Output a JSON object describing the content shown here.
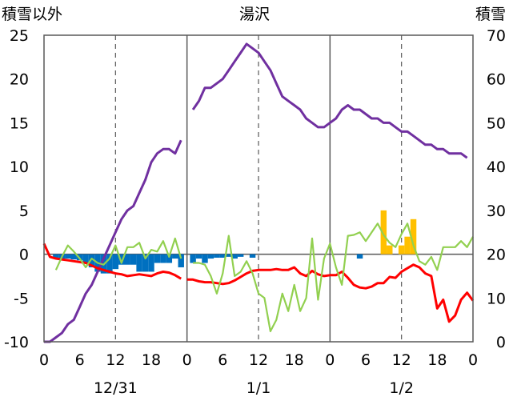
{
  "chart_data": {
    "type": "line",
    "title": "湯沢",
    "ylabel_left": "積雪以外",
    "ylabel_right": "積雪",
    "left_axis": {
      "min": -10,
      "max": 25,
      "ticks": [
        -10,
        -5,
        0,
        5,
        10,
        15,
        20,
        25
      ]
    },
    "right_axis": {
      "min": 0,
      "max": 70,
      "ticks": [
        0,
        10,
        20,
        30,
        40,
        50,
        60,
        70
      ]
    },
    "x_hours": {
      "min": 0,
      "max": 72
    },
    "x_ticks": [
      {
        "h": 0,
        "label": "0"
      },
      {
        "h": 6,
        "label": "6"
      },
      {
        "h": 12,
        "label": "12"
      },
      {
        "h": 18,
        "label": "18"
      },
      {
        "h": 24,
        "label": "0"
      },
      {
        "h": 30,
        "label": "6"
      },
      {
        "h": 36,
        "label": "12"
      },
      {
        "h": 42,
        "label": "18"
      },
      {
        "h": 48,
        "label": "0"
      },
      {
        "h": 54,
        "label": "6"
      },
      {
        "h": 60,
        "label": "12"
      },
      {
        "h": 66,
        "label": "18"
      },
      {
        "h": 72,
        "label": "0"
      }
    ],
    "date_labels": [
      {
        "h": 12,
        "label": "12/31"
      },
      {
        "h": 36,
        "label": "1/1"
      },
      {
        "h": 60,
        "label": "1/2"
      }
    ],
    "grid": {
      "solid_x": [
        24,
        48
      ],
      "dashed_x": [
        12,
        36,
        60
      ],
      "zero_line": 0
    },
    "series": [
      {
        "axis": "right",
        "color": "#7030a0",
        "segments": [
          [
            [
              0,
              0
            ],
            [
              1,
              0
            ],
            [
              2,
              1
            ],
            [
              3,
              2
            ],
            [
              4,
              4
            ],
            [
              5,
              5
            ],
            [
              6,
              8
            ],
            [
              7,
              11
            ],
            [
              8,
              13
            ],
            [
              9,
              16
            ],
            [
              10,
              19
            ],
            [
              11,
              22
            ],
            [
              12,
              25
            ],
            [
              13,
              28
            ],
            [
              14,
              30
            ],
            [
              15,
              31
            ],
            [
              16,
              34
            ],
            [
              17,
              37
            ],
            [
              18,
              41
            ],
            [
              19,
              43
            ],
            [
              20,
              44
            ],
            [
              21,
              44
            ],
            [
              22,
              43
            ],
            [
              23,
              46
            ]
          ],
          [
            [
              25,
              53
            ],
            [
              26,
              55
            ],
            [
              27,
              58
            ],
            [
              28,
              58
            ],
            [
              29,
              59
            ],
            [
              30,
              60
            ],
            [
              31,
              62
            ],
            [
              32,
              64
            ],
            [
              33,
              66
            ],
            [
              34,
              68
            ],
            [
              35,
              67
            ],
            [
              36,
              66
            ],
            [
              37,
              64
            ],
            [
              38,
              62
            ],
            [
              39,
              59
            ],
            [
              40,
              56
            ],
            [
              41,
              55
            ],
            [
              42,
              54
            ],
            [
              43,
              53
            ],
            [
              44,
              51
            ],
            [
              45,
              50
            ],
            [
              46,
              49
            ],
            [
              47,
              49
            ],
            [
              48,
              50
            ],
            [
              49,
              51
            ],
            [
              50,
              53
            ],
            [
              51,
              54
            ],
            [
              52,
              53
            ],
            [
              53,
              53
            ],
            [
              54,
              52
            ],
            [
              55,
              51
            ],
            [
              56,
              51
            ],
            [
              57,
              50
            ],
            [
              58,
              50
            ],
            [
              59,
              49
            ],
            [
              60,
              48
            ],
            [
              61,
              48
            ],
            [
              62,
              47
            ],
            [
              63,
              46
            ],
            [
              64,
              45
            ],
            [
              65,
              45
            ],
            [
              66,
              44
            ],
            [
              67,
              44
            ],
            [
              68,
              43
            ],
            [
              69,
              43
            ],
            [
              70,
              43
            ],
            [
              71,
              42
            ]
          ]
        ]
      },
      {
        "axis": "left",
        "color": "#ff0000",
        "segments": [
          [
            [
              0,
              1.2
            ],
            [
              1,
              -0.3
            ],
            [
              2,
              -0.5
            ],
            [
              3,
              -0.6
            ],
            [
              4,
              -0.7
            ],
            [
              5,
              -0.8
            ],
            [
              6,
              -0.9
            ],
            [
              7,
              -1.0
            ],
            [
              8,
              -1.3
            ],
            [
              9,
              -1.6
            ],
            [
              10,
              -1.8
            ],
            [
              11,
              -2.0
            ],
            [
              12,
              -2.2
            ],
            [
              13,
              -2.3
            ],
            [
              14,
              -2.5
            ],
            [
              15,
              -2.4
            ],
            [
              16,
              -2.3
            ],
            [
              17,
              -2.4
            ],
            [
              18,
              -2.5
            ],
            [
              19,
              -2.2
            ],
            [
              20,
              -2.0
            ],
            [
              21,
              -2.1
            ],
            [
              22,
              -2.4
            ],
            [
              23,
              -2.8
            ]
          ],
          [
            [
              24,
              -2.9
            ],
            [
              25,
              -2.9
            ],
            [
              26,
              -3.1
            ],
            [
              27,
              -3.2
            ],
            [
              28,
              -3.2
            ],
            [
              29,
              -3.3
            ],
            [
              30,
              -3.4
            ],
            [
              31,
              -3.3
            ],
            [
              32,
              -3.0
            ],
            [
              33,
              -2.6
            ],
            [
              34,
              -2.2
            ],
            [
              35,
              -1.9
            ],
            [
              36,
              -1.8
            ],
            [
              37,
              -1.8
            ],
            [
              38,
              -1.8
            ],
            [
              39,
              -1.7
            ],
            [
              40,
              -1.8
            ],
            [
              41,
              -1.8
            ],
            [
              42,
              -1.5
            ],
            [
              43,
              -2.2
            ],
            [
              44,
              -2.5
            ],
            [
              45,
              -1.9
            ],
            [
              46,
              -2.3
            ],
            [
              47,
              -2.5
            ],
            [
              48,
              -2.4
            ],
            [
              49,
              -2.4
            ],
            [
              50,
              -2.0
            ],
            [
              51,
              -2.7
            ],
            [
              52,
              -3.5
            ],
            [
              53,
              -3.8
            ],
            [
              54,
              -3.9
            ],
            [
              55,
              -3.7
            ],
            [
              56,
              -3.3
            ],
            [
              57,
              -3.3
            ],
            [
              58,
              -2.6
            ],
            [
              59,
              -2.7
            ],
            [
              60,
              -2.0
            ],
            [
              61,
              -1.6
            ],
            [
              62,
              -1.2
            ],
            [
              63,
              -1.5
            ],
            [
              64,
              -2.2
            ],
            [
              65,
              -2.5
            ],
            [
              66,
              -6.2
            ],
            [
              67,
              -5.2
            ],
            [
              68,
              -7.7
            ],
            [
              69,
              -7.0
            ],
            [
              70,
              -5.2
            ],
            [
              71,
              -4.4
            ],
            [
              72,
              -5.3
            ]
          ]
        ]
      },
      {
        "axis": "left",
        "color": "#92d050",
        "segments": [
          [
            [
              2,
              -1.8
            ],
            [
              3,
              -0.3
            ],
            [
              4,
              1.0
            ],
            [
              5,
              0.3
            ],
            [
              6,
              -0.5
            ],
            [
              7,
              -1.5
            ],
            [
              8,
              -0.5
            ],
            [
              9,
              -1.0
            ],
            [
              10,
              -1.2
            ],
            [
              11,
              -0.5
            ],
            [
              12,
              1.0
            ],
            [
              13,
              -1.0
            ],
            [
              14,
              0.8
            ],
            [
              15,
              0.8
            ],
            [
              16,
              1.3
            ],
            [
              17,
              -0.5
            ],
            [
              18,
              0.5
            ],
            [
              19,
              0.3
            ],
            [
              20,
              1.5
            ],
            [
              21,
              -0.3
            ],
            [
              22,
              1.8
            ],
            [
              23,
              -0.5
            ]
          ],
          [
            [
              25,
              -1.0
            ],
            [
              26,
              -1.0
            ],
            [
              27,
              -1.2
            ],
            [
              28,
              -2.5
            ],
            [
              29,
              -4.5
            ],
            [
              30,
              -2.2
            ],
            [
              31,
              2.1
            ],
            [
              32,
              -2.5
            ],
            [
              33,
              -2.0
            ],
            [
              34,
              -0.8
            ],
            [
              35,
              -2.2
            ],
            [
              36,
              -4.5
            ],
            [
              37,
              -5.0
            ],
            [
              38,
              -8.8
            ],
            [
              39,
              -7.5
            ],
            [
              40,
              -4.5
            ],
            [
              41,
              -6.5
            ],
            [
              42,
              -3.5
            ],
            [
              43,
              -6.5
            ],
            [
              44,
              -5.0
            ],
            [
              45,
              1.8
            ],
            [
              46,
              -5.2
            ],
            [
              47,
              -0.5
            ],
            [
              48,
              1.2
            ],
            [
              49,
              -1.5
            ],
            [
              50,
              -3.5
            ],
            [
              51,
              2.1
            ],
            [
              52,
              2.2
            ],
            [
              53,
              2.5
            ],
            [
              54,
              1.5
            ],
            [
              55,
              2.5
            ],
            [
              56,
              3.5
            ],
            [
              57,
              2.2
            ],
            [
              58,
              1.3
            ],
            [
              59,
              0.8
            ],
            [
              60,
              2.3
            ],
            [
              61,
              3.5
            ],
            [
              62,
              1.0
            ],
            [
              63,
              -0.8
            ],
            [
              64,
              -1.2
            ],
            [
              65,
              -0.3
            ],
            [
              66,
              -1.8
            ],
            [
              67,
              0.8
            ],
            [
              68,
              0.8
            ],
            [
              69,
              0.8
            ],
            [
              70,
              1.5
            ],
            [
              71,
              0.8
            ],
            [
              72,
              2.0
            ]
          ]
        ]
      }
    ],
    "bars": [
      {
        "axis": "left",
        "color": "#0070c0",
        "points": [
          [
            2,
            -0.4
          ],
          [
            3,
            -0.5
          ],
          [
            4,
            -0.5
          ],
          [
            5,
            -0.6
          ],
          [
            6,
            -0.7
          ],
          [
            7,
            -1.0
          ],
          [
            8,
            -1.5
          ],
          [
            9,
            -2.0
          ],
          [
            10,
            -2.2
          ],
          [
            11,
            -2.2
          ],
          [
            12,
            -1.7
          ],
          [
            13,
            -1.2
          ],
          [
            14,
            -1.2
          ],
          [
            15,
            -1.2
          ],
          [
            16,
            -2.0
          ],
          [
            17,
            -2.0
          ],
          [
            18,
            -2.0
          ],
          [
            19,
            -1.0
          ],
          [
            20,
            -1.0
          ],
          [
            21,
            -1.0
          ],
          [
            22,
            -0.5
          ],
          [
            23,
            -1.5
          ],
          [
            25,
            -1.0
          ],
          [
            26,
            -0.5
          ],
          [
            27,
            -1.0
          ],
          [
            28,
            -0.5
          ],
          [
            29,
            -0.4
          ],
          [
            30,
            -0.4
          ],
          [
            31,
            -0.3
          ],
          [
            32,
            -0.5
          ],
          [
            33,
            -0.3
          ],
          [
            35,
            -0.4
          ],
          [
            53,
            -0.5
          ]
        ]
      },
      {
        "axis": "left",
        "color": "#ffc000",
        "points": [
          [
            57,
            5.0
          ],
          [
            58,
            1.0
          ],
          [
            60,
            1.0
          ],
          [
            61,
            2.0
          ],
          [
            62,
            4.0
          ]
        ]
      }
    ]
  }
}
